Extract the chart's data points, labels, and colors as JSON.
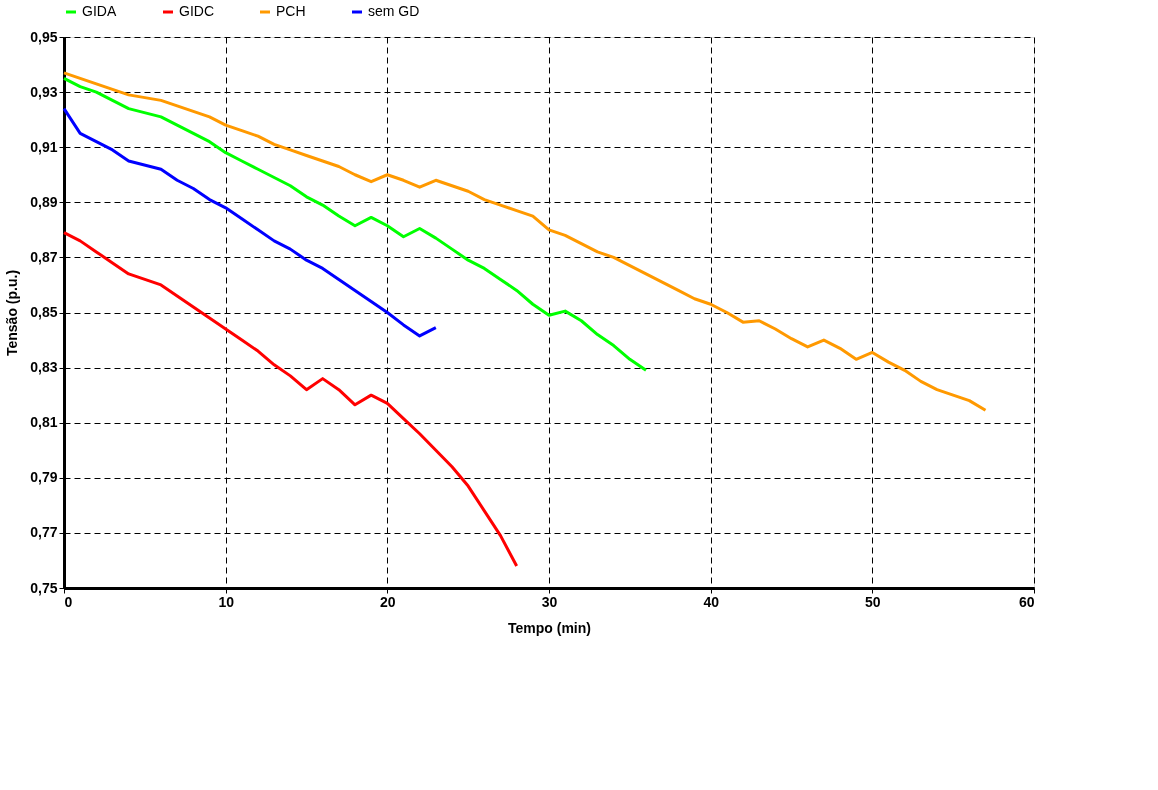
{
  "chart_data": {
    "type": "line",
    "xlabel": "Tempo (min)",
    "ylabel": "Tensão (p.u.)",
    "xlim": [
      0,
      60
    ],
    "xticks": [
      0,
      10,
      20,
      30,
      40,
      50,
      60
    ],
    "ylim": [
      0.75,
      0.95
    ],
    "yticks": [
      {
        "value": 0.75,
        "label": "0,75"
      },
      {
        "value": 0.77,
        "label": "0,77"
      },
      {
        "value": 0.79,
        "label": "0,79"
      },
      {
        "value": 0.81,
        "label": "0,81"
      },
      {
        "value": 0.83,
        "label": "0,83"
      },
      {
        "value": 0.85,
        "label": "0,85"
      },
      {
        "value": 0.87,
        "label": "0,87"
      },
      {
        "value": 0.89,
        "label": "0,89"
      },
      {
        "value": 0.91,
        "label": "0,91"
      },
      {
        "value": 0.93,
        "label": "0,93"
      },
      {
        "value": 0.95,
        "label": "0,95"
      }
    ],
    "grid": true,
    "legend": "top",
    "marker": "none",
    "line_style": "solid",
    "series": [
      {
        "name": "GIDA",
        "color": "#00ff00",
        "x": [
          0,
          1,
          2,
          3,
          4,
          6,
          7,
          8,
          9,
          10,
          11,
          12,
          13,
          14,
          15,
          16,
          17,
          18,
          19,
          20,
          21,
          22,
          23,
          24,
          25,
          26,
          27,
          28,
          29,
          30,
          31,
          32,
          33,
          34,
          35,
          36
        ],
        "values": [
          0.935,
          0.932,
          0.93,
          0.927,
          0.924,
          0.921,
          0.918,
          0.915,
          0.912,
          0.908,
          0.905,
          0.902,
          0.899,
          0.896,
          0.892,
          0.889,
          0.885,
          0.8815,
          0.8845,
          0.8815,
          0.8775,
          0.8805,
          0.877,
          0.873,
          0.869,
          0.866,
          0.862,
          0.858,
          0.853,
          0.849,
          0.8505,
          0.847,
          0.842,
          0.838,
          0.833,
          0.829
        ]
      },
      {
        "name": "GIDC",
        "color": "#ff0000",
        "x": [
          0,
          1,
          2,
          3,
          4,
          6,
          7,
          8,
          9,
          10,
          11,
          12,
          13,
          14,
          15,
          16,
          17,
          18,
          19,
          20,
          21,
          22,
          23,
          24,
          25,
          26,
          27,
          28
        ],
        "values": [
          0.879,
          0.876,
          0.872,
          0.868,
          0.864,
          0.86,
          0.856,
          0.852,
          0.848,
          0.844,
          0.84,
          0.836,
          0.831,
          0.827,
          0.822,
          0.826,
          0.822,
          0.8165,
          0.82,
          0.817,
          0.8115,
          0.806,
          0.8,
          0.794,
          0.787,
          0.778,
          0.769,
          0.758
        ]
      },
      {
        "name": "PCH",
        "color": "#ff9900",
        "x": [
          0,
          2,
          3,
          4,
          6,
          7,
          9,
          10,
          11,
          12,
          13,
          14,
          15,
          16,
          17,
          18,
          19,
          20,
          21,
          22,
          23,
          24,
          25,
          26,
          27,
          28,
          29,
          30,
          31,
          32,
          33,
          34,
          35,
          36,
          37,
          38,
          39,
          40,
          41,
          42,
          43,
          44,
          45,
          46,
          47,
          48,
          49,
          50,
          51,
          52,
          53,
          54,
          55,
          56,
          57
        ],
        "values": [
          0.937,
          0.933,
          0.931,
          0.929,
          0.927,
          0.925,
          0.921,
          0.918,
          0.916,
          0.914,
          0.911,
          0.909,
          0.907,
          0.905,
          0.903,
          0.9,
          0.8975,
          0.9,
          0.898,
          0.8955,
          0.898,
          0.896,
          0.894,
          0.891,
          0.889,
          0.887,
          0.885,
          0.88,
          0.878,
          0.875,
          0.872,
          0.87,
          0.867,
          0.864,
          0.861,
          0.858,
          0.855,
          0.853,
          0.85,
          0.8465,
          0.847,
          0.844,
          0.8405,
          0.8375,
          0.84,
          0.837,
          0.833,
          0.8355,
          0.832,
          0.829,
          0.825,
          0.822,
          0.82,
          0.818,
          0.8145
        ]
      },
      {
        "name": "sem GD",
        "color": "#0000ff",
        "x": [
          0,
          1,
          2,
          3,
          4,
          6,
          7,
          8,
          9,
          10,
          11,
          12,
          13,
          14,
          15,
          16,
          17,
          18,
          19,
          20,
          21,
          22,
          23
        ],
        "values": [
          0.924,
          0.915,
          0.912,
          0.909,
          0.905,
          0.902,
          0.898,
          0.895,
          0.891,
          0.888,
          0.884,
          0.88,
          0.876,
          0.873,
          0.869,
          0.866,
          0.862,
          0.858,
          0.854,
          0.85,
          0.8455,
          0.8415,
          0.8445
        ]
      }
    ]
  }
}
